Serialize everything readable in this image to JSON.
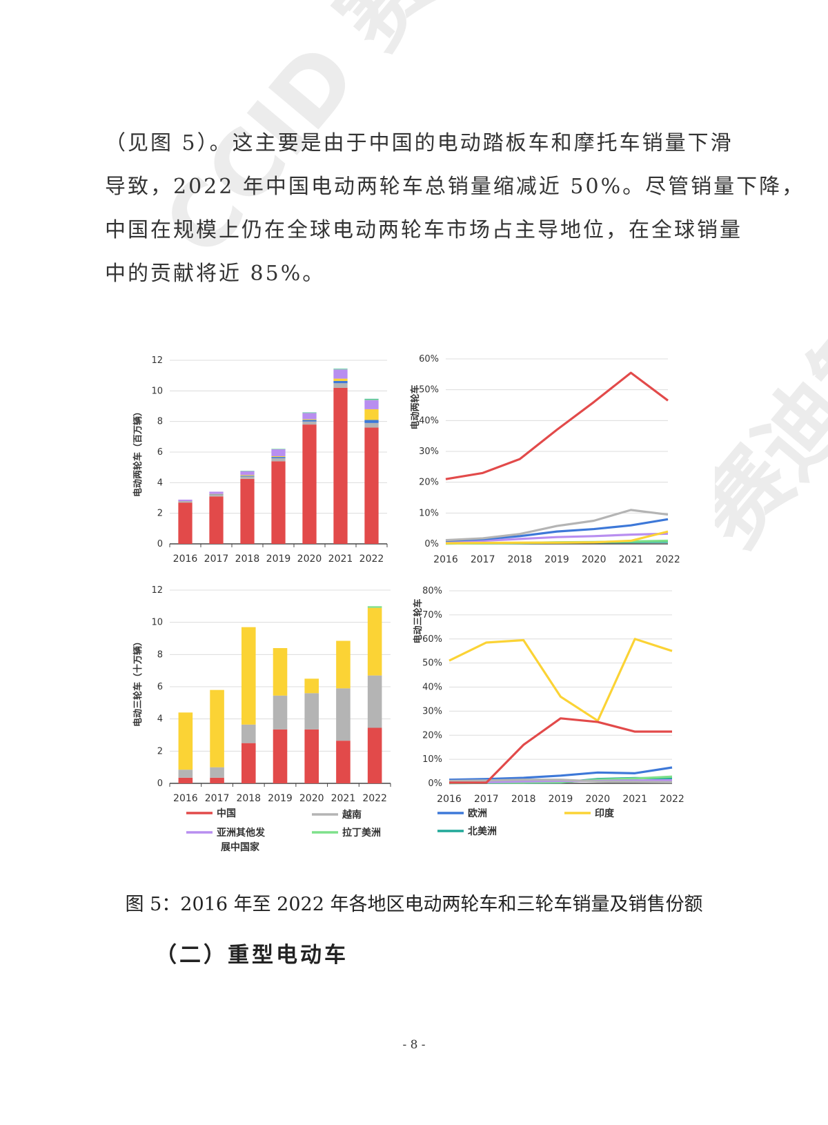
{
  "watermark_text": "CCID 赛迪智库",
  "paragraph_lines": [
    "（见图 5）。这主要是由于中国的电动踏板车和摩托车销量下滑",
    "导致，2022 年中国电动两轮车总销量缩减近 50%。尽管销量下降，",
    "中国在规模上仍在全球电动两轮车市场占主导地位，在全球销量",
    "中的贡献将近 85%。"
  ],
  "legend": [
    {
      "name": "中国",
      "color": "#e24a4a"
    },
    {
      "name": "越南",
      "color": "#b4b4b4"
    },
    {
      "name": "欧洲",
      "color": "#3d78d8"
    },
    {
      "name": "印度",
      "color": "#fbd335"
    },
    {
      "name": "亚洲其他发展中国家",
      "color": "#b88ef0"
    },
    {
      "name": "拉丁美洲",
      "color": "#7de08a"
    },
    {
      "name": "北美洲",
      "color": "#20a898"
    }
  ],
  "chart_data": [
    {
      "type": "bar",
      "stacked": true,
      "ylabel": "电动两轮车（百万辆）",
      "categories": [
        "2016",
        "2017",
        "2018",
        "2019",
        "2020",
        "2021",
        "2022"
      ],
      "ylim": [
        0,
        12
      ],
      "yticks": [
        "0",
        "2",
        "4",
        "6",
        "8",
        "10",
        "12"
      ],
      "series": [
        {
          "name": "中国",
          "color": "#e24a4a",
          "values": [
            2.7,
            3.1,
            4.25,
            5.4,
            7.8,
            10.2,
            7.6
          ]
        },
        {
          "name": "越南",
          "color": "#b4b4b4",
          "values": [
            0.05,
            0.1,
            0.15,
            0.2,
            0.2,
            0.3,
            0.3
          ]
        },
        {
          "name": "欧洲",
          "color": "#3d78d8",
          "values": [
            0.02,
            0.03,
            0.05,
            0.08,
            0.1,
            0.15,
            0.2
          ]
        },
        {
          "name": "印度",
          "color": "#fbd335",
          "values": [
            0.02,
            0.03,
            0.05,
            0.05,
            0.05,
            0.15,
            0.7
          ]
        },
        {
          "name": "亚洲其他发展中国家",
          "color": "#b88ef0",
          "values": [
            0.1,
            0.15,
            0.25,
            0.45,
            0.4,
            0.6,
            0.6
          ]
        },
        {
          "name": "拉丁美洲",
          "color": "#7de08a",
          "values": [
            0.0,
            0.0,
            0.02,
            0.02,
            0.02,
            0.03,
            0.05
          ]
        },
        {
          "name": "北美洲",
          "color": "#20a898",
          "values": [
            0.0,
            0.0,
            0.01,
            0.01,
            0.02,
            0.02,
            0.03
          ]
        }
      ]
    },
    {
      "type": "line",
      "ylabel": "电动两轮车",
      "categories": [
        "2016",
        "2017",
        "2018",
        "2019",
        "2020",
        "2021",
        "2022"
      ],
      "ylim": [
        0,
        60
      ],
      "yticks": [
        "0%",
        "10%",
        "20%",
        "30%",
        "40%",
        "50%",
        "60%"
      ],
      "series": [
        {
          "name": "中国",
          "color": "#e24a4a",
          "values": [
            21,
            23,
            27.5,
            37,
            46,
            55.5,
            46.5
          ]
        },
        {
          "name": "越南",
          "color": "#b4b4b4",
          "values": [
            1.2,
            1.8,
            3.2,
            5.8,
            7.5,
            11,
            9.5
          ]
        },
        {
          "name": "欧洲",
          "color": "#3d78d8",
          "values": [
            1.0,
            1.5,
            2.5,
            4.0,
            4.8,
            6.0,
            8.0
          ]
        },
        {
          "name": "印度",
          "color": "#fbd335",
          "values": [
            0.2,
            0.3,
            0.4,
            0.4,
            0.5,
            1.0,
            4.0
          ]
        },
        {
          "name": "亚洲其他发展中国家",
          "color": "#b88ef0",
          "values": [
            0.8,
            1.0,
            1.6,
            2.2,
            2.5,
            3.0,
            3.3
          ]
        },
        {
          "name": "拉丁美洲",
          "color": "#7de08a",
          "values": [
            0.1,
            0.2,
            0.3,
            0.5,
            0.6,
            0.8,
            1.0
          ]
        },
        {
          "name": "北美洲",
          "color": "#20a898",
          "values": [
            0.1,
            0.2,
            0.3,
            0.4,
            0.5,
            0.6,
            0.7
          ]
        }
      ]
    },
    {
      "type": "bar",
      "stacked": true,
      "ylabel": "电动三轮车（十万辆）",
      "categories": [
        "2016",
        "2017",
        "2018",
        "2019",
        "2020",
        "2021",
        "2022"
      ],
      "ylim": [
        0,
        12
      ],
      "yticks": [
        "0",
        "2",
        "4",
        "6",
        "8",
        "10",
        "12"
      ],
      "series": [
        {
          "name": "中国",
          "color": "#e24a4a",
          "values": [
            0.35,
            0.35,
            2.5,
            3.35,
            3.35,
            2.65,
            3.45
          ]
        },
        {
          "name": "越南",
          "color": "#b4b4b4",
          "values": [
            0.5,
            0.65,
            1.15,
            2.1,
            2.25,
            3.25,
            3.25
          ]
        },
        {
          "name": "欧洲",
          "color": "#3d78d8",
          "values": [
            0.0,
            0.0,
            0.0,
            0.0,
            0.0,
            0.0,
            0.0
          ]
        },
        {
          "name": "印度",
          "color": "#fbd335",
          "values": [
            3.55,
            4.8,
            6.05,
            2.95,
            0.9,
            2.95,
            4.2
          ]
        },
        {
          "name": "亚洲其他发展中国家",
          "color": "#b88ef0",
          "values": [
            0.0,
            0.0,
            0.0,
            0.0,
            0.0,
            0.0,
            0.0
          ]
        },
        {
          "name": "拉丁美洲",
          "color": "#7de08a",
          "values": [
            0.0,
            0.0,
            0.0,
            0.0,
            0.0,
            0.0,
            0.1
          ]
        },
        {
          "name": "北美洲",
          "color": "#20a898",
          "values": [
            0.0,
            0.0,
            0.0,
            0.0,
            0.0,
            0.0,
            0.0
          ]
        }
      ]
    },
    {
      "type": "line",
      "ylabel": "电动三轮车",
      "categories": [
        "2016",
        "2017",
        "2018",
        "2019",
        "2020",
        "2021",
        "2022"
      ],
      "ylim": [
        0,
        80
      ],
      "yticks": [
        "0%",
        "10%",
        "20%",
        "30%",
        "40%",
        "50%",
        "60%",
        "70%",
        "80%"
      ],
      "series": [
        {
          "name": "中国",
          "color": "#e24a4a",
          "values": [
            0.3,
            0.3,
            16,
            27,
            25.5,
            21.5,
            21.5
          ]
        },
        {
          "name": "越南",
          "color": "#b4b4b4",
          "values": [
            1.0,
            1.2,
            1.5,
            1.5,
            0.8,
            0.6,
            0.5
          ]
        },
        {
          "name": "欧洲",
          "color": "#3d78d8",
          "values": [
            1.5,
            1.8,
            2.3,
            3.2,
            4.5,
            4.2,
            6.6
          ]
        },
        {
          "name": "印度",
          "color": "#fbd335",
          "values": [
            51,
            58.5,
            59.5,
            36,
            26,
            60,
            55
          ]
        },
        {
          "name": "亚洲其他发展中国家",
          "color": "#b88ef0",
          "values": [
            0.3,
            0.5,
            0.8,
            1.0,
            1.0,
            1.2,
            1.3
          ]
        },
        {
          "name": "拉丁美洲",
          "color": "#7de08a",
          "values": [
            0.2,
            0.3,
            0.4,
            0.5,
            1.5,
            2.0,
            2.8
          ]
        },
        {
          "name": "北美洲",
          "color": "#20a898",
          "values": [
            0.1,
            0.2,
            0.3,
            0.4,
            1.8,
            2.2,
            2.0
          ]
        }
      ]
    }
  ],
  "caption": "图 5：2016 年至 2022 年各地区电动两轮车和三轮车销量及销售份额",
  "section_title": "（二）重型电动车",
  "page_number": "- 8 -"
}
